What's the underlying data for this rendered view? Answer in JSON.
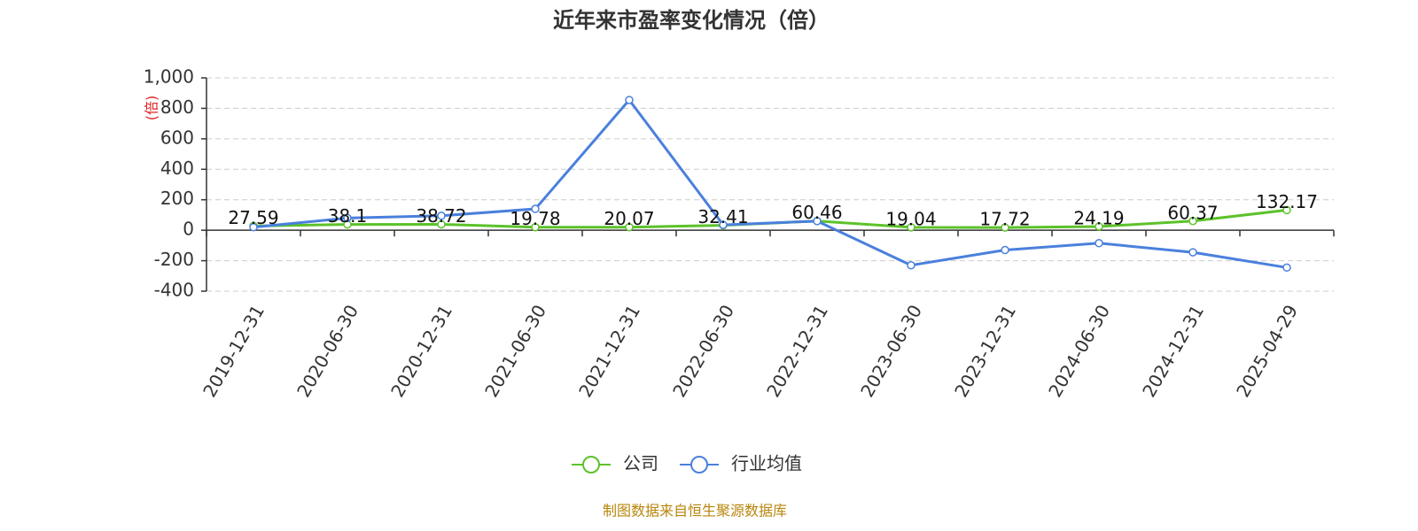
{
  "chart_data": {
    "type": "line",
    "title": "近年来市盈率变化情况（倍）",
    "y_label": "(倍)",
    "source": "制图数据来自恒生聚源数据库",
    "categories": [
      "2019-12-31",
      "2020-06-30",
      "2020-12-31",
      "2021-06-30",
      "2021-12-31",
      "2022-06-30",
      "2022-12-31",
      "2023-06-30",
      "2023-12-31",
      "2024-06-30",
      "2024-12-31",
      "2025-04-29"
    ],
    "series": [
      {
        "name": "公司",
        "color": "#5cc22a",
        "values": [
          27.59,
          38.1,
          38.72,
          19.78,
          20.07,
          32.41,
          60.46,
          19.04,
          17.72,
          24.19,
          60.37,
          132.17
        ],
        "show_labels": true
      },
      {
        "name": "行业均值",
        "color": "#4a80dc",
        "values": [
          20,
          80,
          95,
          140,
          855,
          35,
          60,
          -230,
          -130,
          -85,
          -145,
          -245
        ],
        "show_labels": false
      }
    ],
    "ylim": [
      -400,
      1000
    ],
    "yticks": [
      -400,
      -200,
      0,
      200,
      400,
      600,
      800,
      {
        "value": 1000,
        "label": "1,000"
      }
    ],
    "grid": true
  }
}
